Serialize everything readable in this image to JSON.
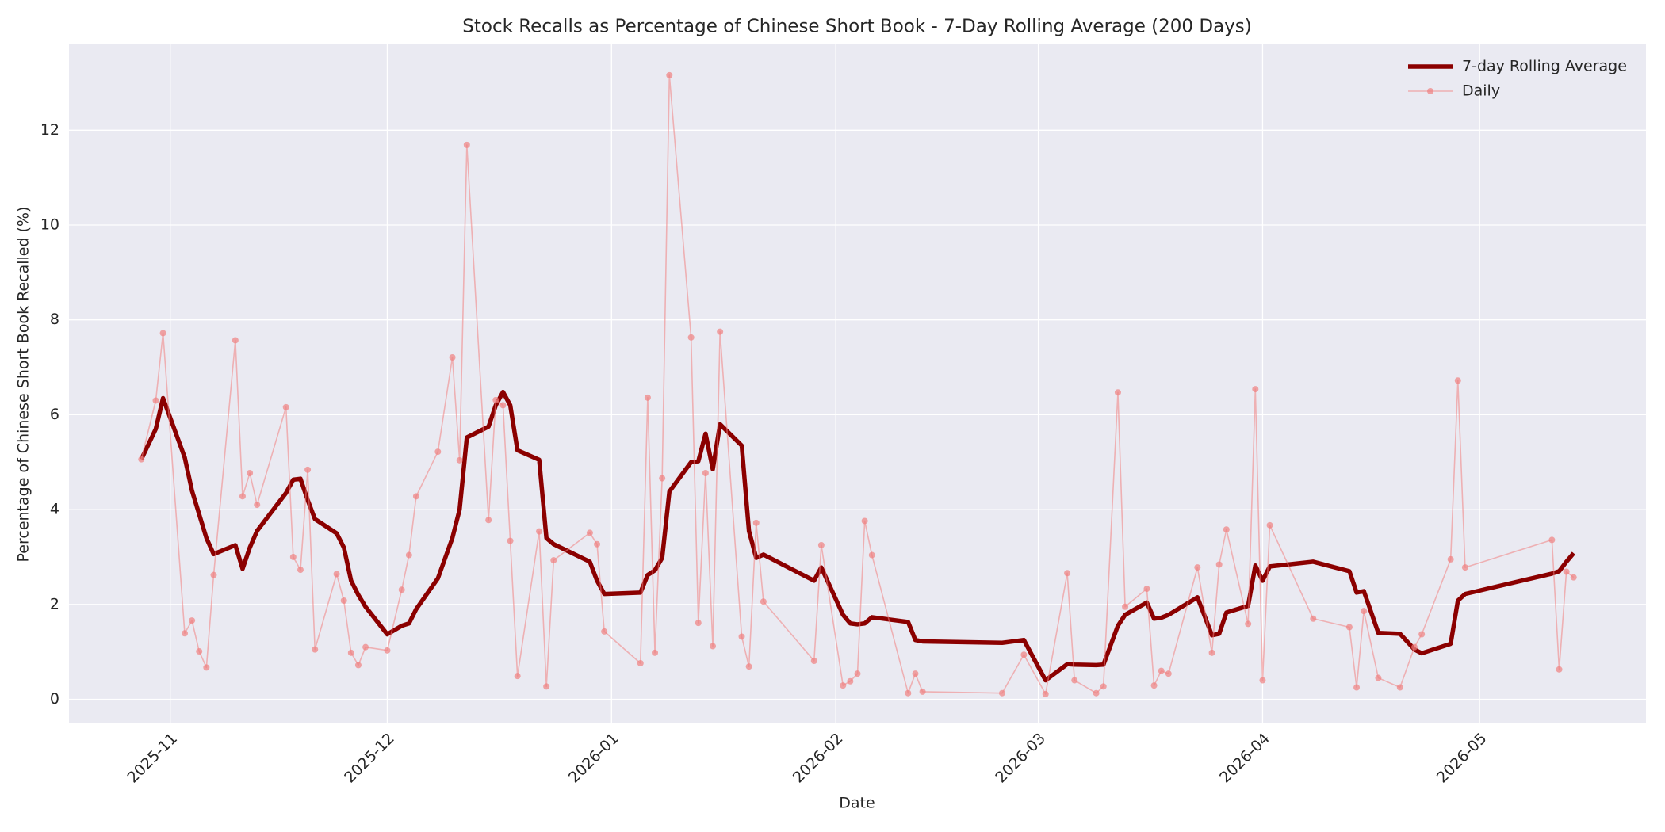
{
  "chart_data": {
    "type": "line",
    "title": "Stock Recalls as Percentage of Chinese Short Book - 7-Day Rolling Average (200 Days)",
    "xlabel": "Date",
    "ylabel": "Percentage of Chinese Short Book Recalled (%)",
    "x": [
      20389,
      20391,
      20392,
      20395,
      20396,
      20397,
      20398,
      20399,
      20402,
      20403,
      20404,
      20405,
      20409,
      20410,
      20411,
      20412,
      20413,
      20416,
      20417,
      20418,
      20419,
      20420,
      20423,
      20425,
      20426,
      20427,
      20430,
      20432,
      20433,
      20434,
      20437,
      20438,
      20439,
      20440,
      20441,
      20444,
      20445,
      20446,
      20451,
      20452,
      20453,
      20458,
      20459,
      20460,
      20461,
      20462,
      20465,
      20466,
      20467,
      20468,
      20469,
      20472,
      20473,
      20474,
      20475,
      20482,
      20483,
      20486,
      20487,
      20488,
      20489,
      20490,
      20495,
      20496,
      20497,
      20508,
      20511,
      20514,
      20517,
      20518,
      20521,
      20522,
      20524,
      20525,
      20528,
      20529,
      20530,
      20531,
      20535,
      20537,
      20538,
      20539,
      20542,
      20543,
      20544,
      20545,
      20551,
      20556,
      20557,
      20558,
      20560,
      20563,
      20565,
      20566,
      20570,
      20571,
      20572,
      20584,
      20585,
      20586,
      20587
    ],
    "series": [
      {
        "name": "7-day Rolling Average",
        "color": "#8b0000",
        "values": [
          5.06,
          5.7,
          6.35,
          5.1,
          4.4,
          3.9,
          3.4,
          3.06,
          3.25,
          2.75,
          3.2,
          3.55,
          4.35,
          4.63,
          4.65,
          4.2,
          3.8,
          3.5,
          3.2,
          2.5,
          2.2,
          1.95,
          1.37,
          1.55,
          1.6,
          1.9,
          2.55,
          3.4,
          4.0,
          5.52,
          5.75,
          6.2,
          6.48,
          6.2,
          5.25,
          5.05,
          3.4,
          3.27,
          2.9,
          2.5,
          2.22,
          2.25,
          2.62,
          2.72,
          2.98,
          4.38,
          5.0,
          5.02,
          5.6,
          4.85,
          5.8,
          5.35,
          3.55,
          2.98,
          3.05,
          2.5,
          2.78,
          1.78,
          1.6,
          1.58,
          1.6,
          1.73,
          1.63,
          1.25,
          1.22,
          1.19,
          1.25,
          0.4,
          0.74,
          0.73,
          0.72,
          0.73,
          1.55,
          1.78,
          2.04,
          1.7,
          1.72,
          1.78,
          2.15,
          1.35,
          1.38,
          1.83,
          1.97,
          2.82,
          2.5,
          2.8,
          2.9,
          2.7,
          2.25,
          2.28,
          1.4,
          1.38,
          1.05,
          0.97,
          1.17,
          2.08,
          2.22,
          2.65,
          2.7,
          2.9,
          3.08
        ]
      },
      {
        "name": "Daily",
        "color": "#f08080",
        "markers": true,
        "values": [
          5.06,
          6.3,
          7.72,
          1.39,
          1.66,
          1.01,
          0.67,
          2.62,
          7.57,
          4.28,
          4.77,
          4.1,
          6.16,
          3.0,
          2.73,
          4.84,
          1.05,
          2.64,
          2.08,
          0.98,
          0.72,
          1.1,
          1.03,
          2.31,
          3.04,
          4.28,
          5.22,
          7.21,
          5.04,
          11.69,
          3.78,
          6.31,
          6.2,
          3.34,
          0.49,
          3.54,
          0.27,
          2.93,
          3.51,
          3.27,
          1.43,
          0.76,
          6.36,
          0.98,
          4.66,
          13.16,
          7.63,
          1.61,
          4.77,
          1.12,
          7.75,
          1.32,
          0.69,
          3.72,
          2.06,
          0.81,
          3.25,
          0.29,
          0.38,
          0.54,
          3.76,
          3.04,
          0.13,
          0.54,
          0.16,
          0.13,
          0.94,
          0.11,
          2.66,
          0.4,
          0.13,
          0.27,
          6.47,
          1.95,
          2.33,
          0.29,
          0.6,
          0.54,
          2.78,
          0.98,
          2.84,
          3.58,
          1.59,
          6.54,
          0.4,
          3.67,
          1.7,
          1.52,
          0.25,
          1.86,
          0.45,
          0.25,
          1.1,
          1.37,
          2.95,
          6.72,
          2.78,
          3.36,
          0.63,
          2.69,
          2.57
        ]
      }
    ],
    "xlim": [
      20379,
      20597
    ],
    "xticks": [
      {
        "value": 20393,
        "label": "2025-11"
      },
      {
        "value": 20423,
        "label": "2025-12"
      },
      {
        "value": 20454,
        "label": "2026-01"
      },
      {
        "value": 20485,
        "label": "2026-02"
      },
      {
        "value": 20513,
        "label": "2026-03"
      },
      {
        "value": 20544,
        "label": "2026-04"
      },
      {
        "value": 20574,
        "label": "2026-05"
      }
    ],
    "ylim": [
      -0.51,
      13.81
    ],
    "yticks": [
      0,
      2,
      4,
      6,
      8,
      10,
      12
    ],
    "grid": true,
    "legend": "upper right"
  }
}
